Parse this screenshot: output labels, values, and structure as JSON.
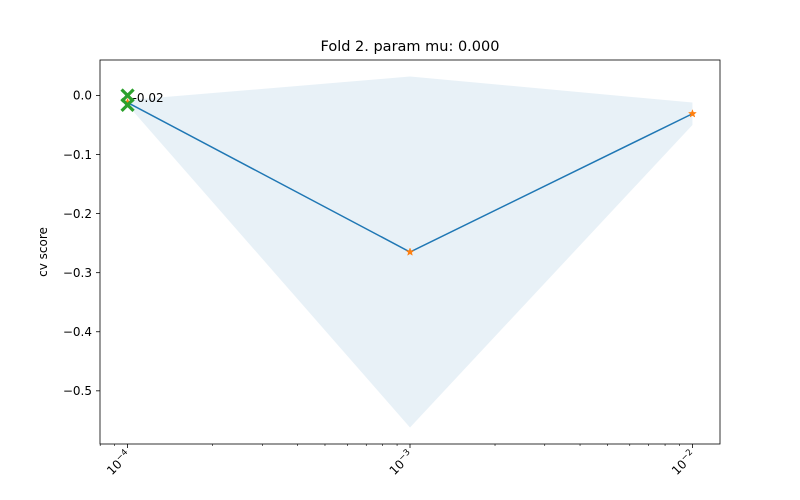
{
  "chart_data": {
    "type": "line",
    "title": "Fold 2. param mu: 0.000",
    "xlabel": "",
    "ylabel": "cv score",
    "xscale": "log",
    "xlim": [
      0.0001,
      0.01
    ],
    "ylim": [
      -0.59,
      0.06
    ],
    "grid": false,
    "x_ticks": [
      {
        "value": 0.0001,
        "label": "10−4",
        "base": "10",
        "exp": "−4"
      },
      {
        "value": 0.001,
        "label": "10−3",
        "base": "10",
        "exp": "−3"
      },
      {
        "value": 0.01,
        "label": "10−2",
        "base": "10",
        "exp": "−2"
      }
    ],
    "y_ticks": [
      {
        "value": 0.0,
        "label": "0.0"
      },
      {
        "value": -0.1,
        "label": "−0.1"
      },
      {
        "value": -0.2,
        "label": "−0.2"
      },
      {
        "value": -0.3,
        "label": "−0.3"
      },
      {
        "value": -0.4,
        "label": "−0.4"
      },
      {
        "value": -0.5,
        "label": "−0.5"
      }
    ],
    "series": [
      {
        "x": [
          0.0001,
          0.001,
          0.01
        ],
        "y": [
          -0.012,
          -0.265,
          -0.031
        ],
        "band_upper": [
          -0.008,
          0.032,
          -0.012
        ],
        "band_lower": [
          -0.016,
          -0.562,
          -0.05
        ],
        "line_color": "#1f77b4",
        "band_color": "#1f77b4",
        "marker": "star",
        "marker_color": "#ff7f0e"
      }
    ],
    "best_points": [
      {
        "x": 0.0001,
        "y": 0.0
      },
      {
        "x": 0.0001,
        "y": -0.016
      }
    ],
    "best_marker_color": "#2ca02c",
    "annotation": {
      "text": "-0.02",
      "x": 0.0001,
      "y": 0.0
    }
  }
}
